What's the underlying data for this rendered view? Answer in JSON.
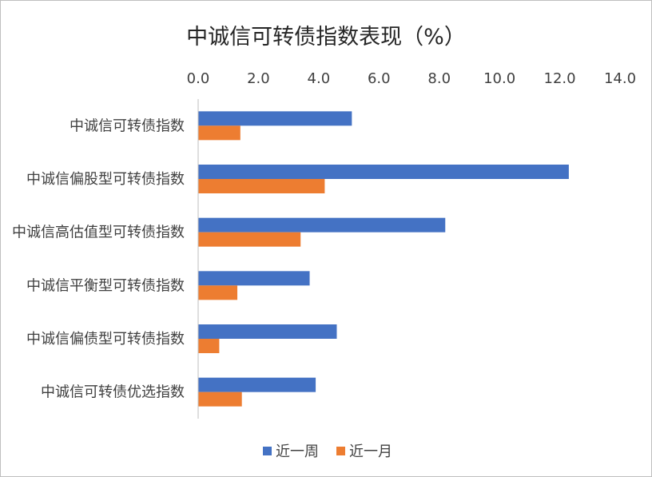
{
  "chart_data": {
    "type": "bar",
    "orientation": "horizontal",
    "title": "中诚信可转债指数表现（%）",
    "categories": [
      "中诚信可转债指数",
      "中诚信偏股型可转债指数",
      "中诚信高估值型可转债指数",
      "中诚信平衡型可转债指数",
      "中诚信偏债型可转债指数",
      "中诚信可转债优选指数"
    ],
    "series": [
      {
        "name": "近一周",
        "color": "#4472C4",
        "values": [
          5.1,
          12.3,
          8.2,
          3.7,
          4.6,
          3.9
        ]
      },
      {
        "name": "近一月",
        "color": "#ED7D31",
        "values": [
          1.4,
          4.2,
          3.4,
          1.3,
          0.7,
          1.45
        ]
      }
    ],
    "x_ticks": [
      "0.0",
      "2.0",
      "4.0",
      "6.0",
      "8.0",
      "10.0",
      "12.0",
      "14.0"
    ],
    "xlim": [
      0,
      14
    ],
    "axis_position": "top",
    "grid": false,
    "legend_position": "bottom"
  }
}
